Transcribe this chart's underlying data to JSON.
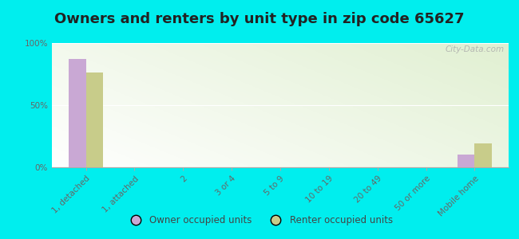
{
  "title": "Owners and renters by unit type in zip code 65627",
  "categories": [
    "1, detached",
    "1, attached",
    "2",
    "3 or 4",
    "5 to 9",
    "10 to 19",
    "20 to 49",
    "50 or more",
    "Mobile home"
  ],
  "owner_values": [
    87,
    0,
    0,
    0,
    0,
    0,
    0,
    0,
    10
  ],
  "renter_values": [
    76,
    0,
    0,
    0,
    0,
    0,
    0,
    0,
    19
  ],
  "owner_color": "#c9a8d4",
  "renter_color": "#c8cc8a",
  "ylim": [
    0,
    100
  ],
  "yticks": [
    0,
    50,
    100
  ],
  "ytick_labels": [
    "0%",
    "50%",
    "100%"
  ],
  "bar_width": 0.35,
  "background_color": "#00eeee",
  "plot_bg_color_tl": "#e8f0d0",
  "plot_bg_color_tr": "#d8e8b8",
  "plot_bg_color_bl": "#f8fef0",
  "plot_bg_color_br": "#f0f8e0",
  "legend_owner": "Owner occupied units",
  "legend_renter": "Renter occupied units",
  "title_fontsize": 13,
  "axis_fontsize": 7.5,
  "watermark": "City-Data.com"
}
